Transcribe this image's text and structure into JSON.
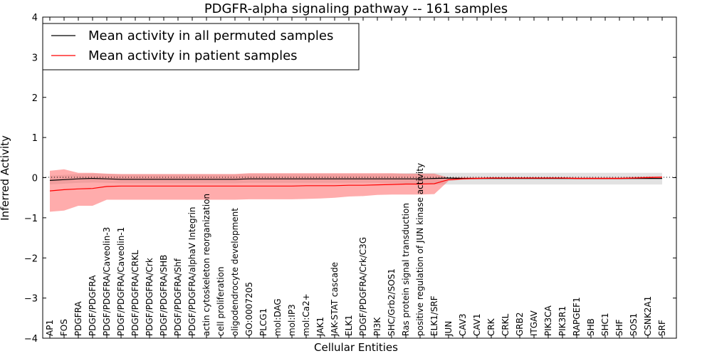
{
  "chart_data": {
    "type": "line",
    "title": "PDGFR-alpha signaling pathway -- 161 samples",
    "xlabel": "Cellular Entities",
    "ylabel": "Inferred Activity",
    "ylim": [
      -4,
      4
    ],
    "yticks": [
      "4",
      "3",
      "2",
      "1",
      "0",
      "−1",
      "−2",
      "−3",
      "−4"
    ],
    "yticks_values": [
      4,
      3,
      2,
      1,
      0,
      -1,
      -2,
      -3,
      -4
    ],
    "grid": false,
    "legend_position": "top-left",
    "categories": [
      "AP1",
      "FOS",
      "PDGFRA",
      "PDGF/PDGFRA",
      "PDGF/PDGFRA/Caveolin-3",
      "PDGF/PDGFRA/Caveolin-1",
      "PDGF/PDGFRA/CRKL",
      "PDGF/PDGFRA/Crk",
      "PDGF/PDGFRA/SHB",
      "PDGF/PDGFRA/Shf",
      "PDGF/PDGFRA/alphaV Integrin",
      "actin cytoskeleton reorganization",
      "cell proliferation",
      "oligodendrocyte development",
      "GO:0007205",
      "PLCG1",
      "mol:DAG",
      "mol:IP3",
      "mol:Ca2+",
      "JAK1",
      "JAK-STAT cascade",
      "ELK1",
      "PDGF/PDGFRA/Crk/C3G",
      "PI3K",
      "SHC/Grb2/SOS1",
      "Ras protein signal transduction",
      "positive regulation of JUN kinase activity",
      "ELK1/SRF",
      "JUN",
      "CAV3",
      "CAV1",
      "CRK",
      "CRKL",
      "GRB2",
      "ITGAV",
      "PIK3CA",
      "PIK3R1",
      "RAPGEF1",
      "SHB",
      "SHC1",
      "SHF",
      "SOS1",
      "CSNK2A1",
      "SRF"
    ],
    "series": [
      {
        "name": "Mean activity in all permuted samples",
        "color": "#000000",
        "band_color": "#bfbfbf",
        "values": [
          -0.07,
          -0.05,
          -0.03,
          -0.02,
          -0.03,
          -0.04,
          -0.04,
          -0.04,
          -0.04,
          -0.04,
          -0.04,
          -0.04,
          -0.04,
          -0.04,
          -0.03,
          -0.03,
          -0.03,
          -0.03,
          -0.03,
          -0.03,
          -0.03,
          -0.03,
          -0.03,
          -0.03,
          -0.03,
          -0.03,
          -0.03,
          -0.02,
          -0.01,
          -0.02,
          -0.02,
          -0.02,
          -0.02,
          -0.02,
          -0.02,
          -0.02,
          -0.02,
          -0.02,
          -0.02,
          -0.02,
          -0.02,
          -0.02,
          -0.02,
          -0.02
        ],
        "lower": [
          -0.17,
          -0.15,
          -0.13,
          -0.12,
          -0.13,
          -0.14,
          -0.14,
          -0.14,
          -0.14,
          -0.14,
          -0.14,
          -0.14,
          -0.14,
          -0.14,
          -0.13,
          -0.13,
          -0.13,
          -0.13,
          -0.13,
          -0.13,
          -0.13,
          -0.13,
          -0.13,
          -0.13,
          -0.14,
          -0.15,
          -0.16,
          -0.17,
          -0.17,
          -0.17,
          -0.17,
          -0.17,
          -0.17,
          -0.17,
          -0.17,
          -0.17,
          -0.17,
          -0.17,
          -0.17,
          -0.17,
          -0.17,
          -0.17,
          -0.17,
          -0.17
        ],
        "upper": [
          0.05,
          0.07,
          0.09,
          0.1,
          0.09,
          0.08,
          0.08,
          0.08,
          0.08,
          0.08,
          0.08,
          0.08,
          0.08,
          0.08,
          0.09,
          0.09,
          0.09,
          0.09,
          0.09,
          0.09,
          0.09,
          0.09,
          0.09,
          0.09,
          0.1,
          0.11,
          0.12,
          0.12,
          0.12,
          0.12,
          0.12,
          0.12,
          0.12,
          0.12,
          0.12,
          0.12,
          0.12,
          0.12,
          0.12,
          0.12,
          0.12,
          0.12,
          0.12,
          0.12
        ]
      },
      {
        "name": "Mean activity in patient samples",
        "color": "#ff0000",
        "band_color": "#ff5a5a",
        "values": [
          -0.33,
          -0.3,
          -0.28,
          -0.27,
          -0.22,
          -0.21,
          -0.21,
          -0.21,
          -0.21,
          -0.21,
          -0.21,
          -0.21,
          -0.21,
          -0.21,
          -0.21,
          -0.21,
          -0.21,
          -0.21,
          -0.2,
          -0.2,
          -0.2,
          -0.19,
          -0.19,
          -0.18,
          -0.17,
          -0.16,
          -0.16,
          -0.15,
          -0.05,
          -0.03,
          -0.02,
          -0.01,
          -0.01,
          -0.01,
          -0.01,
          -0.01,
          -0.01,
          -0.02,
          -0.02,
          -0.02,
          -0.02,
          -0.01,
          0.0,
          0.01
        ],
        "lower": [
          -0.85,
          -0.82,
          -0.7,
          -0.7,
          -0.55,
          -0.55,
          -0.55,
          -0.55,
          -0.55,
          -0.55,
          -0.55,
          -0.55,
          -0.55,
          -0.55,
          -0.54,
          -0.54,
          -0.54,
          -0.54,
          -0.53,
          -0.52,
          -0.5,
          -0.47,
          -0.46,
          -0.43,
          -0.42,
          -0.42,
          -0.42,
          -0.41,
          -0.08,
          -0.05,
          -0.04,
          -0.03,
          -0.03,
          -0.03,
          -0.03,
          -0.03,
          -0.03,
          -0.04,
          -0.04,
          -0.04,
          -0.04,
          -0.03,
          -0.02,
          -0.02
        ],
        "upper": [
          0.17,
          0.21,
          0.12,
          0.12,
          0.1,
          0.09,
          0.09,
          0.09,
          0.09,
          0.09,
          0.09,
          0.09,
          0.09,
          0.09,
          0.11,
          0.11,
          0.11,
          0.11,
          0.11,
          0.11,
          0.11,
          0.11,
          0.11,
          0.11,
          0.11,
          0.1,
          0.1,
          0.1,
          0.0,
          0.01,
          0.01,
          0.01,
          0.01,
          0.01,
          0.01,
          0.01,
          0.01,
          0.01,
          0.01,
          0.01,
          0.01,
          0.02,
          0.03,
          0.03
        ]
      }
    ]
  }
}
